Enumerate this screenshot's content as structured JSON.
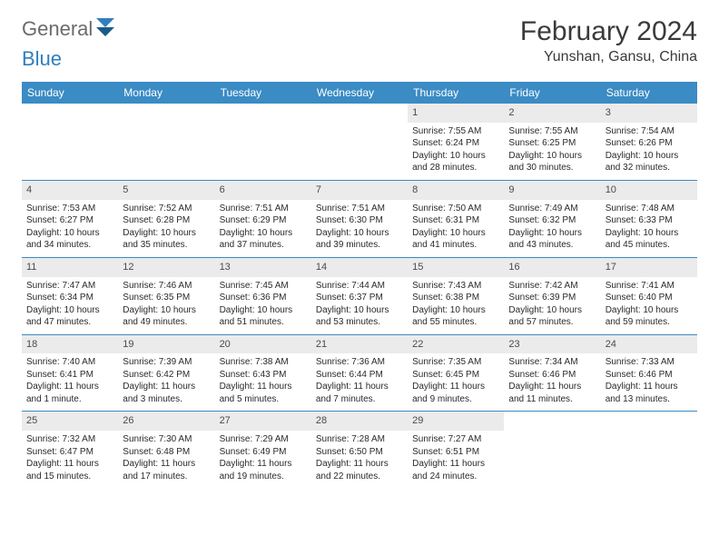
{
  "brand": {
    "name_part1": "General",
    "name_part2": "Blue"
  },
  "title": {
    "month": "February 2024",
    "location": "Yunshan, Gansu, China"
  },
  "colors": {
    "header_bg": "#3b8bc4",
    "daynum_bg": "#ebebeb",
    "logo_blue": "#2f7fbf",
    "text_gray": "#6b6b6b"
  },
  "weekdays": [
    "Sunday",
    "Monday",
    "Tuesday",
    "Wednesday",
    "Thursday",
    "Friday",
    "Saturday"
  ],
  "weeks": [
    [
      null,
      null,
      null,
      null,
      {
        "n": "1",
        "sr": "Sunrise: 7:55 AM",
        "ss": "Sunset: 6:24 PM",
        "dl": "Daylight: 10 hours and 28 minutes."
      },
      {
        "n": "2",
        "sr": "Sunrise: 7:55 AM",
        "ss": "Sunset: 6:25 PM",
        "dl": "Daylight: 10 hours and 30 minutes."
      },
      {
        "n": "3",
        "sr": "Sunrise: 7:54 AM",
        "ss": "Sunset: 6:26 PM",
        "dl": "Daylight: 10 hours and 32 minutes."
      }
    ],
    [
      {
        "n": "4",
        "sr": "Sunrise: 7:53 AM",
        "ss": "Sunset: 6:27 PM",
        "dl": "Daylight: 10 hours and 34 minutes."
      },
      {
        "n": "5",
        "sr": "Sunrise: 7:52 AM",
        "ss": "Sunset: 6:28 PM",
        "dl": "Daylight: 10 hours and 35 minutes."
      },
      {
        "n": "6",
        "sr": "Sunrise: 7:51 AM",
        "ss": "Sunset: 6:29 PM",
        "dl": "Daylight: 10 hours and 37 minutes."
      },
      {
        "n": "7",
        "sr": "Sunrise: 7:51 AM",
        "ss": "Sunset: 6:30 PM",
        "dl": "Daylight: 10 hours and 39 minutes."
      },
      {
        "n": "8",
        "sr": "Sunrise: 7:50 AM",
        "ss": "Sunset: 6:31 PM",
        "dl": "Daylight: 10 hours and 41 minutes."
      },
      {
        "n": "9",
        "sr": "Sunrise: 7:49 AM",
        "ss": "Sunset: 6:32 PM",
        "dl": "Daylight: 10 hours and 43 minutes."
      },
      {
        "n": "10",
        "sr": "Sunrise: 7:48 AM",
        "ss": "Sunset: 6:33 PM",
        "dl": "Daylight: 10 hours and 45 minutes."
      }
    ],
    [
      {
        "n": "11",
        "sr": "Sunrise: 7:47 AM",
        "ss": "Sunset: 6:34 PM",
        "dl": "Daylight: 10 hours and 47 minutes."
      },
      {
        "n": "12",
        "sr": "Sunrise: 7:46 AM",
        "ss": "Sunset: 6:35 PM",
        "dl": "Daylight: 10 hours and 49 minutes."
      },
      {
        "n": "13",
        "sr": "Sunrise: 7:45 AM",
        "ss": "Sunset: 6:36 PM",
        "dl": "Daylight: 10 hours and 51 minutes."
      },
      {
        "n": "14",
        "sr": "Sunrise: 7:44 AM",
        "ss": "Sunset: 6:37 PM",
        "dl": "Daylight: 10 hours and 53 minutes."
      },
      {
        "n": "15",
        "sr": "Sunrise: 7:43 AM",
        "ss": "Sunset: 6:38 PM",
        "dl": "Daylight: 10 hours and 55 minutes."
      },
      {
        "n": "16",
        "sr": "Sunrise: 7:42 AM",
        "ss": "Sunset: 6:39 PM",
        "dl": "Daylight: 10 hours and 57 minutes."
      },
      {
        "n": "17",
        "sr": "Sunrise: 7:41 AM",
        "ss": "Sunset: 6:40 PM",
        "dl": "Daylight: 10 hours and 59 minutes."
      }
    ],
    [
      {
        "n": "18",
        "sr": "Sunrise: 7:40 AM",
        "ss": "Sunset: 6:41 PM",
        "dl": "Daylight: 11 hours and 1 minute."
      },
      {
        "n": "19",
        "sr": "Sunrise: 7:39 AM",
        "ss": "Sunset: 6:42 PM",
        "dl": "Daylight: 11 hours and 3 minutes."
      },
      {
        "n": "20",
        "sr": "Sunrise: 7:38 AM",
        "ss": "Sunset: 6:43 PM",
        "dl": "Daylight: 11 hours and 5 minutes."
      },
      {
        "n": "21",
        "sr": "Sunrise: 7:36 AM",
        "ss": "Sunset: 6:44 PM",
        "dl": "Daylight: 11 hours and 7 minutes."
      },
      {
        "n": "22",
        "sr": "Sunrise: 7:35 AM",
        "ss": "Sunset: 6:45 PM",
        "dl": "Daylight: 11 hours and 9 minutes."
      },
      {
        "n": "23",
        "sr": "Sunrise: 7:34 AM",
        "ss": "Sunset: 6:46 PM",
        "dl": "Daylight: 11 hours and 11 minutes."
      },
      {
        "n": "24",
        "sr": "Sunrise: 7:33 AM",
        "ss": "Sunset: 6:46 PM",
        "dl": "Daylight: 11 hours and 13 minutes."
      }
    ],
    [
      {
        "n": "25",
        "sr": "Sunrise: 7:32 AM",
        "ss": "Sunset: 6:47 PM",
        "dl": "Daylight: 11 hours and 15 minutes."
      },
      {
        "n": "26",
        "sr": "Sunrise: 7:30 AM",
        "ss": "Sunset: 6:48 PM",
        "dl": "Daylight: 11 hours and 17 minutes."
      },
      {
        "n": "27",
        "sr": "Sunrise: 7:29 AM",
        "ss": "Sunset: 6:49 PM",
        "dl": "Daylight: 11 hours and 19 minutes."
      },
      {
        "n": "28",
        "sr": "Sunrise: 7:28 AM",
        "ss": "Sunset: 6:50 PM",
        "dl": "Daylight: 11 hours and 22 minutes."
      },
      {
        "n": "29",
        "sr": "Sunrise: 7:27 AM",
        "ss": "Sunset: 6:51 PM",
        "dl": "Daylight: 11 hours and 24 minutes."
      },
      null,
      null
    ]
  ]
}
